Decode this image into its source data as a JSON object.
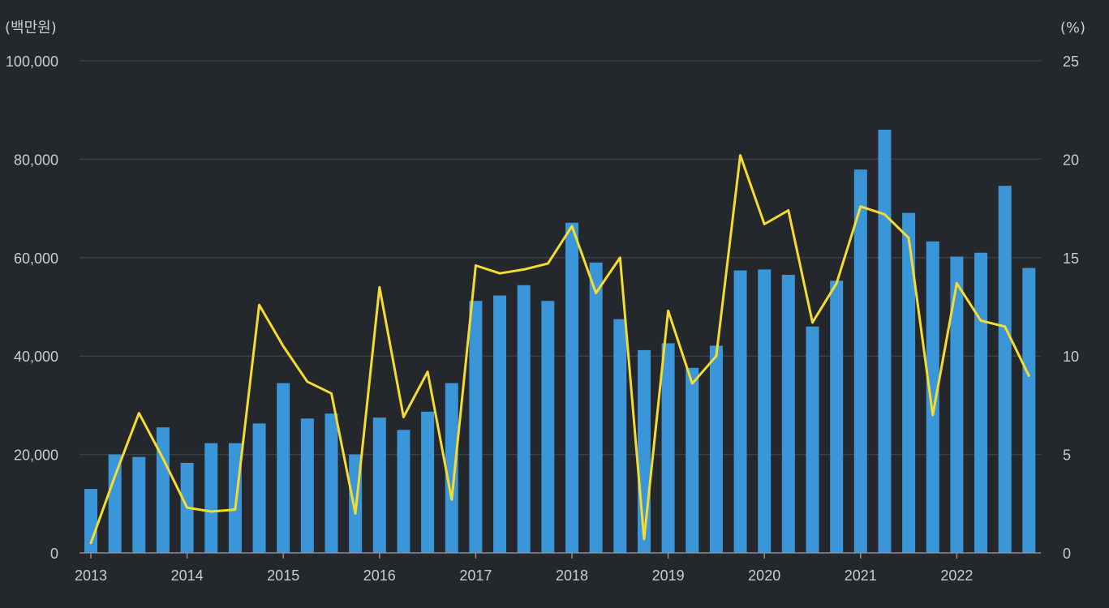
{
  "chart_data": {
    "type": "bar+line",
    "left_unit_label": "(백만원)",
    "right_unit_label": "(%)",
    "left_axis": {
      "ylim": [
        0,
        100000
      ],
      "ticks": [
        "0",
        "20,000",
        "40,000",
        "60,000",
        "80,000",
        "100,000"
      ]
    },
    "right_axis": {
      "ylim": [
        0,
        25
      ],
      "ticks": [
        "0",
        "5",
        "10",
        "15",
        "20",
        "25"
      ]
    },
    "x_tick_labels": [
      "2013",
      "2014",
      "2015",
      "2016",
      "2017",
      "2018",
      "2019",
      "2020",
      "2021",
      "2022"
    ],
    "categories": [
      "2013.Q1",
      "2013.Q2",
      "2013.Q3",
      "2013.Q4",
      "2014.Q1",
      "2014.Q2",
      "2014.Q3",
      "2014.Q4",
      "2015.Q1",
      "2015.Q2",
      "2015.Q3",
      "2015.Q4",
      "2016.Q1",
      "2016.Q2",
      "2016.Q3",
      "2016.Q4",
      "2017.Q1",
      "2017.Q2",
      "2017.Q3",
      "2017.Q4",
      "2018.Q1",
      "2018.Q2",
      "2018.Q3",
      "2018.Q4",
      "2019.Q1",
      "2019.Q2",
      "2019.Q3",
      "2019.Q4",
      "2020.Q1",
      "2020.Q2",
      "2020.Q3",
      "2020.Q4",
      "2021.Q1",
      "2021.Q2",
      "2021.Q3",
      "2021.Q4",
      "2022.Q1",
      "2022.Q2",
      "2022.Q3",
      "2022.Q4"
    ],
    "series": [
      {
        "name": "bars",
        "axis": "left",
        "type": "bar",
        "color": "#3a96d9",
        "values": [
          13000,
          20000,
          19500,
          25500,
          18300,
          22300,
          22300,
          26300,
          34500,
          27300,
          28300,
          20000,
          27500,
          25000,
          28700,
          34500,
          51200,
          52300,
          54400,
          51200,
          67100,
          59000,
          47500,
          41200,
          42600,
          37600,
          42100,
          57400,
          57600,
          56500,
          46000,
          55300,
          77900,
          86000,
          69100,
          63300,
          60200,
          61000,
          74600,
          57900
        ]
      },
      {
        "name": "line",
        "axis": "right",
        "type": "line",
        "color": "#f5dc2f",
        "values": [
          0.5,
          3.9,
          7.1,
          4.8,
          2.3,
          2.1,
          2.2,
          12.6,
          10.5,
          8.7,
          8.1,
          2.0,
          13.5,
          6.9,
          9.2,
          2.7,
          14.6,
          14.2,
          14.4,
          14.7,
          16.6,
          13.2,
          15.0,
          0.7,
          12.3,
          8.6,
          10.0,
          20.2,
          16.7,
          17.4,
          11.7,
          13.7,
          17.6,
          17.2,
          16.0,
          7.0,
          13.7,
          11.8,
          11.5,
          9.0
        ]
      }
    ]
  }
}
